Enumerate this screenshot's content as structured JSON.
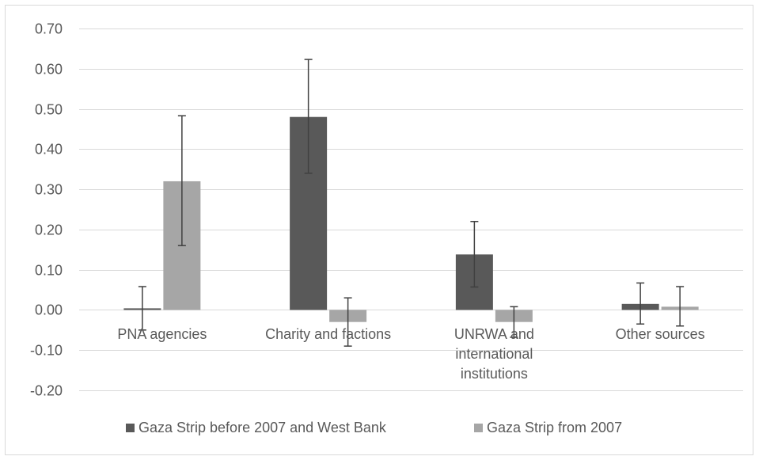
{
  "chart_data": {
    "type": "bar",
    "title": "",
    "xlabel": "",
    "ylabel": "",
    "ylim": [
      -0.2,
      0.7
    ],
    "y_tick_step": 0.1,
    "y_tick_labels": [
      "-0.20",
      "-0.10",
      "0.00",
      "0.10",
      "0.20",
      "0.30",
      "0.40",
      "0.50",
      "0.60",
      "0.70"
    ],
    "grid": true,
    "legend_position": "bottom",
    "categories": [
      [
        "PNA agencies"
      ],
      [
        "Charity and factions"
      ],
      [
        "UNRWA and",
        "international",
        "institutions"
      ],
      [
        "Other sources"
      ]
    ],
    "series": [
      {
        "name": "Gaza Strip before 2007 and West Bank",
        "color": "#595959",
        "values": [
          0.004,
          0.48,
          0.138,
          0.015
        ],
        "error_low": [
          -0.05,
          0.34,
          0.057,
          -0.035
        ],
        "error_high": [
          0.058,
          0.623,
          0.22,
          0.067
        ]
      },
      {
        "name": "Gaza Strip from 2007",
        "color": "#a6a6a6",
        "values": [
          0.32,
          -0.03,
          -0.03,
          0.008
        ],
        "error_low": [
          0.16,
          -0.09,
          -0.068,
          -0.04
        ],
        "error_high": [
          0.483,
          0.03,
          0.008,
          0.058
        ]
      }
    ]
  }
}
